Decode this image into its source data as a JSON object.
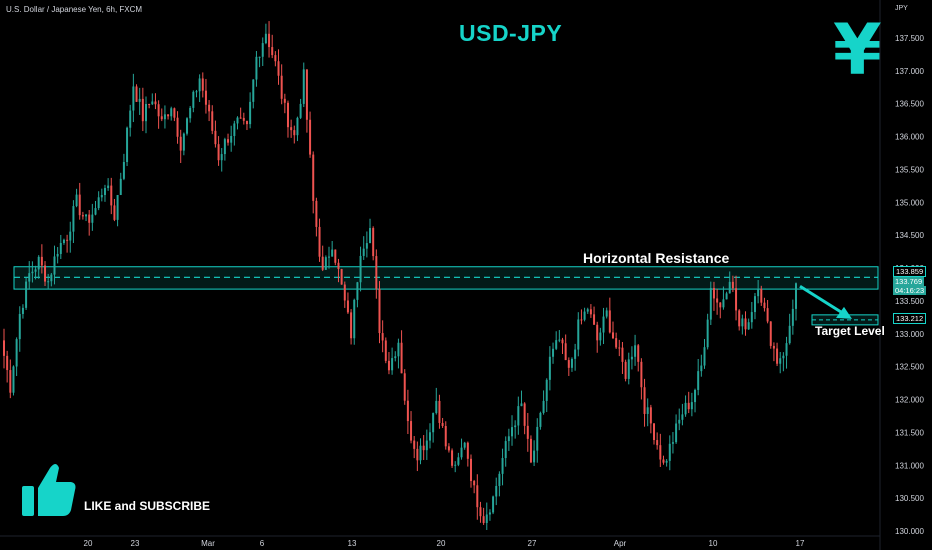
{
  "header": {
    "symbol_info": "U.S. Dollar / Japanese Yen, 6h, FXCM",
    "currency": "JPY"
  },
  "annotations": {
    "title": "USD-JPY",
    "resistance_label": "Horizontal Resistance",
    "target_label": "Target Level",
    "subscribe_label": "LIKE and SUBSCRIBE",
    "yen_symbol": "¥"
  },
  "price_tags": {
    "resistance": "133.859",
    "last_price": "133.769",
    "countdown": "04:16:23",
    "target": "133.212"
  },
  "colors": {
    "up": "#26a69a",
    "down": "#ef5350",
    "accent": "#16d4c9",
    "background": "#000000"
  },
  "icons": [
    "thumbs-up-icon",
    "yen-icon",
    "arrow-icon"
  ],
  "chart_data": {
    "type": "candlestick",
    "title": "USD-JPY",
    "xlabel": "",
    "ylabel": "",
    "ylim": [
      130.0,
      137.9
    ],
    "x_tick_labels": [
      "20",
      "23",
      "Mar",
      "6",
      "13",
      "20",
      "27",
      "Apr",
      "10",
      "17"
    ],
    "y_tick_labels": [
      "137.500",
      "137.000",
      "136.500",
      "136.000",
      "135.500",
      "135.000",
      "134.500",
      "134.000",
      "133.500",
      "133.000",
      "132.500",
      "132.000",
      "131.500",
      "131.000",
      "130.500",
      "130.000"
    ],
    "y_ticks": [
      137.5,
      137.0,
      136.5,
      136.0,
      135.5,
      135.0,
      134.5,
      134.0,
      133.5,
      133.0,
      132.5,
      132.0,
      131.5,
      131.0,
      130.5,
      130.0
    ],
    "resistance_zone": [
      133.68,
      134.02
    ],
    "resistance_level": 133.859,
    "last_price": 133.769,
    "target_level": 133.212,
    "grid": false,
    "price_path": [
      132.9,
      132.2,
      133.3,
      133.9,
      134.1,
      133.8,
      134.3,
      134.5,
      135.0,
      134.7,
      134.9,
      135.3,
      134.8,
      135.7,
      136.8,
      136.3,
      136.6,
      136.2,
      136.5,
      135.9,
      136.4,
      136.9,
      136.3,
      135.7,
      136.0,
      136.2,
      136.1,
      137.2,
      137.6,
      137.1,
      136.4,
      136.0,
      136.9,
      135.0,
      133.9,
      134.4,
      133.7,
      133.0,
      134.3,
      134.6,
      133.1,
      132.5,
      132.9,
      131.6,
      131.2,
      131.4,
      132.0,
      131.3,
      130.9,
      131.4,
      130.6,
      130.2,
      130.5,
      131.1,
      131.6,
      131.9,
      131.0,
      131.7,
      132.6,
      132.9,
      132.4,
      133.1,
      133.4,
      132.9,
      133.3,
      132.8,
      132.4,
      132.9,
      131.9,
      131.5,
      131.0,
      131.4,
      131.8,
      132.0,
      132.5,
      133.7,
      133.4,
      133.9,
      133.1,
      133.2,
      133.8,
      133.1,
      132.6,
      132.8,
      133.769
    ]
  }
}
